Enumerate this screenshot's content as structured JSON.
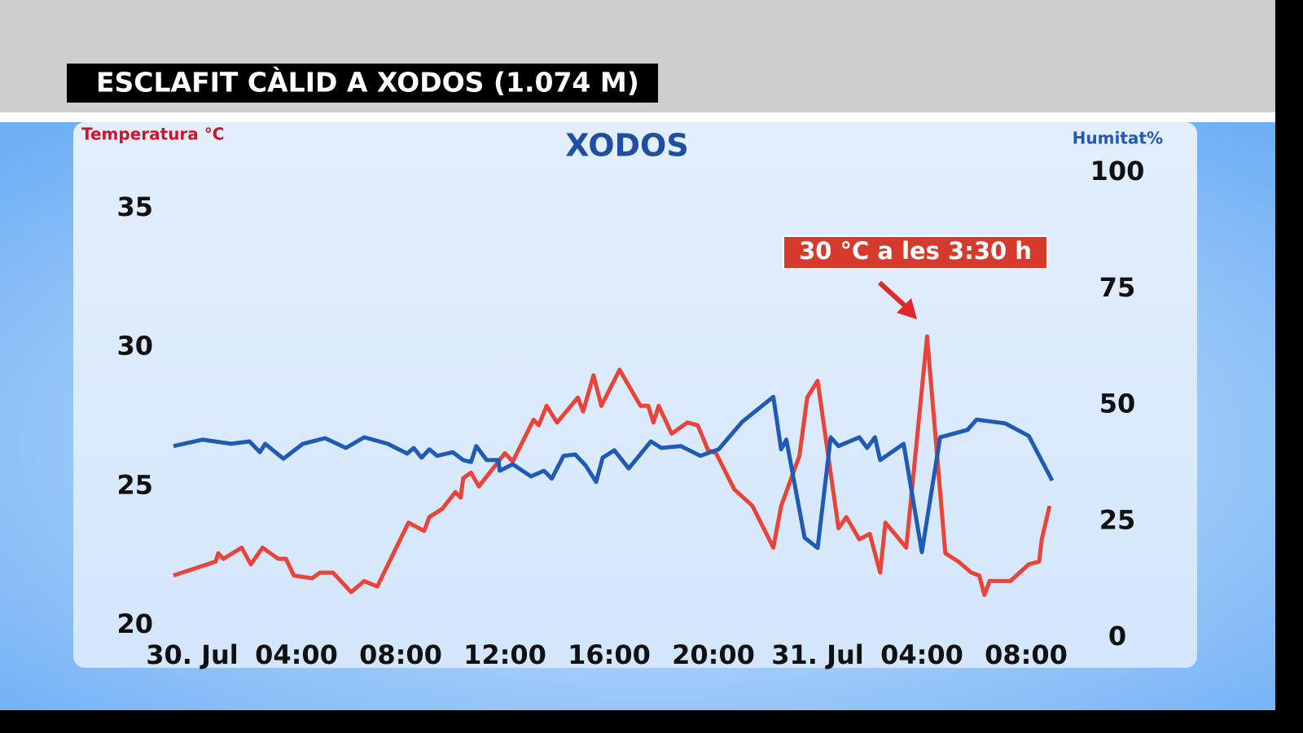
{
  "header": {
    "title": "ESCLAFIT CÀLID A XODOS (1.074 M)"
  },
  "chart_data": {
    "type": "line",
    "title": "XODOS",
    "ylabel": "Temperatura °C",
    "y2label": "Humitat%",
    "annotation": "30 °C a les 3:30 h",
    "xlim": [
      -1,
      33.5
    ],
    "xticks": [
      {
        "value": 0,
        "label": "30. Jul"
      },
      {
        "value": 4,
        "label": "04:00"
      },
      {
        "value": 8,
        "label": "08:00"
      },
      {
        "value": 12,
        "label": "12:00"
      },
      {
        "value": 16,
        "label": "16:00"
      },
      {
        "value": 20,
        "label": "20:00"
      },
      {
        "value": 24,
        "label": "31. Jul"
      },
      {
        "value": 28,
        "label": "04:00"
      },
      {
        "value": 32,
        "label": "08:00"
      }
    ],
    "ylim": [
      20,
      35
    ],
    "yticks": [
      20,
      25,
      30,
      35
    ],
    "y2lim": [
      0,
      100
    ],
    "y2ticks": [
      0,
      25,
      50,
      75,
      100
    ],
    "series": [
      {
        "name": "Temperatura",
        "color": "#e8443a",
        "axis": "y",
        "x": [
          -0.72,
          0.9,
          1.0,
          1.2,
          1.9,
          2.25,
          2.7,
          3.3,
          3.6,
          3.9,
          4.6,
          4.9,
          5.4,
          6.1,
          6.6,
          7.1,
          8.3,
          8.9,
          9.1,
          9.6,
          10.1,
          10.3,
          10.4,
          10.7,
          11.0,
          12.0,
          12.3,
          13.1,
          13.3,
          13.6,
          14.0,
          14.8,
          15.0,
          15.4,
          15.7,
          16.4,
          17.2,
          17.5,
          17.7,
          17.9,
          18.4,
          19.0,
          19.4,
          19.8,
          20.1,
          20.8,
          21.5,
          22.3,
          22.6,
          23.3,
          23.6,
          24.0,
          24.8,
          25.1,
          25.6,
          26.0,
          26.4,
          26.6,
          27.4,
          28.2,
          28.9,
          29.4,
          29.9,
          30.2,
          30.4,
          30.6,
          31.4,
          32.1,
          32.5,
          32.6,
          32.9
        ],
        "values": [
          21.8,
          22.3,
          22.6,
          22.4,
          22.8,
          22.2,
          22.8,
          22.4,
          22.4,
          21.8,
          21.7,
          21.9,
          21.9,
          21.2,
          21.6,
          21.4,
          23.7,
          23.4,
          23.9,
          24.2,
          24.8,
          24.6,
          25.3,
          25.5,
          25.0,
          26.2,
          25.9,
          27.4,
          27.2,
          27.9,
          27.3,
          28.2,
          27.7,
          29.0,
          27.9,
          29.2,
          27.9,
          27.9,
          27.3,
          27.9,
          26.9,
          27.3,
          27.2,
          26.3,
          26.2,
          24.9,
          24.3,
          22.8,
          24.3,
          26.1,
          28.2,
          28.8,
          23.5,
          23.9,
          23.1,
          23.3,
          21.9,
          23.7,
          22.8,
          30.4,
          22.6,
          22.3,
          21.9,
          21.8,
          21.1,
          21.6,
          21.6,
          22.2,
          22.3,
          23.1,
          24.3
        ]
      },
      {
        "name": "Humitat",
        "color": "#1f5bb5",
        "axis": "y2",
        "x": [
          -0.72,
          0.4,
          1.5,
          2.2,
          2.6,
          2.8,
          3.5,
          4.25,
          5.1,
          5.9,
          6.6,
          7.5,
          8.25,
          8.5,
          8.8,
          9.1,
          9.4,
          10.0,
          10.4,
          10.7,
          10.9,
          11.3,
          11.75,
          11.8,
          12.3,
          13.0,
          13.5,
          13.8,
          14.25,
          14.7,
          15.1,
          15.5,
          15.75,
          16.2,
          16.75,
          17.6,
          18.0,
          18.75,
          19.5,
          20.2,
          21.1,
          22.3,
          22.6,
          22.8,
          23.5,
          24.0,
          24.5,
          24.8,
          25.6,
          25.9,
          26.2,
          26.4,
          27.3,
          28.0,
          28.7,
          29.75,
          30.1,
          31.2,
          32.1,
          33.0
        ],
        "values": [
          41.2,
          42.6,
          41.7,
          42.2,
          39.9,
          41.7,
          38.5,
          41.7,
          42.9,
          40.8,
          43.1,
          41.7,
          39.6,
          40.8,
          38.7,
          40.5,
          39.1,
          39.9,
          38.2,
          37.8,
          41.2,
          38.2,
          38.2,
          35.9,
          37.3,
          34.7,
          35.9,
          34.2,
          39.1,
          39.4,
          37.0,
          33.5,
          38.7,
          40.3,
          36.4,
          42.2,
          40.8,
          41.2,
          39.1,
          40.5,
          46.4,
          51.8,
          40.5,
          42.6,
          21.5,
          19.3,
          43.1,
          41.2,
          43.1,
          40.8,
          43.1,
          38.2,
          41.7,
          18.4,
          43.1,
          44.7,
          46.9,
          46.1,
          43.4,
          33.8
        ]
      }
    ]
  }
}
